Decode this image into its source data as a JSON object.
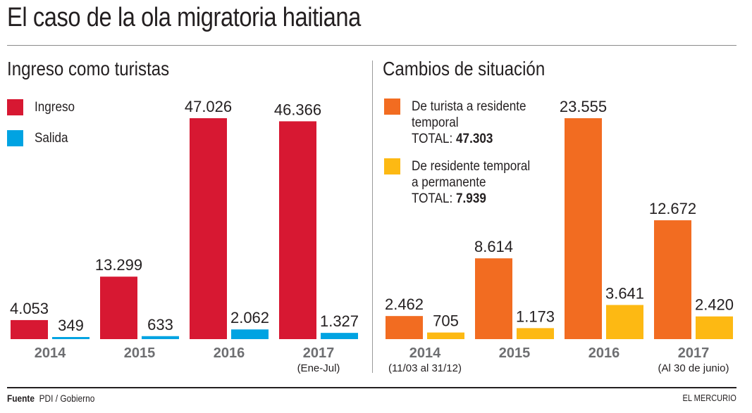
{
  "title": "El caso de la ola migratoria haitiana",
  "footer": {
    "source_label": "Fuente",
    "source_value": "PDI / Gobierno",
    "brand": "EL MERCURIO"
  },
  "chart_data": [
    {
      "type": "bar",
      "title": "Ingreso como turistas",
      "categories": [
        "2014",
        "2015",
        "2016",
        "2017"
      ],
      "category_notes": [
        "",
        "",
        "",
        "(Ene-Jul)"
      ],
      "series": [
        {
          "name": "Ingreso",
          "color": "#d71832",
          "values": [
            4053,
            13299,
            47026,
            46366
          ],
          "labels": [
            "4.053",
            "13.299",
            "47.026",
            "46.366"
          ]
        },
        {
          "name": "Salida",
          "color": "#00a3e2",
          "values": [
            349,
            633,
            2062,
            1327
          ],
          "labels": [
            "349",
            "633",
            "2.062",
            "1.327"
          ]
        }
      ],
      "xlabel": "",
      "ylabel": "",
      "ylim": [
        0,
        47026
      ],
      "grid": false,
      "legend": "top-left"
    },
    {
      "type": "bar",
      "title": "Cambios de situación",
      "categories": [
        "2014",
        "2015",
        "2016",
        "2017"
      ],
      "category_notes": [
        "(11/03 al 31/12)",
        "",
        "",
        "(Al 30 de junio)"
      ],
      "series": [
        {
          "name": "De turista a residente temporal",
          "legend_lines": [
            "De turista a residente",
            "temporal"
          ],
          "total_label": "TOTAL:",
          "total": "47.303",
          "color": "#f26c21",
          "values": [
            2462,
            8614,
            23555,
            12672
          ],
          "labels": [
            "2.462",
            "8.614",
            "23.555",
            "12.672"
          ]
        },
        {
          "name": "De residente temporal a permanente",
          "legend_lines": [
            "De residente temporal",
            "a permanente"
          ],
          "total_label": "TOTAL:",
          "total": "7.939",
          "color": "#fdb913",
          "values": [
            705,
            1173,
            3641,
            2420
          ],
          "labels": [
            "705",
            "1.173",
            "3.641",
            "2.420"
          ]
        }
      ],
      "xlabel": "",
      "ylabel": "",
      "ylim": [
        0,
        23555
      ],
      "grid": false,
      "legend": "top-left"
    }
  ]
}
